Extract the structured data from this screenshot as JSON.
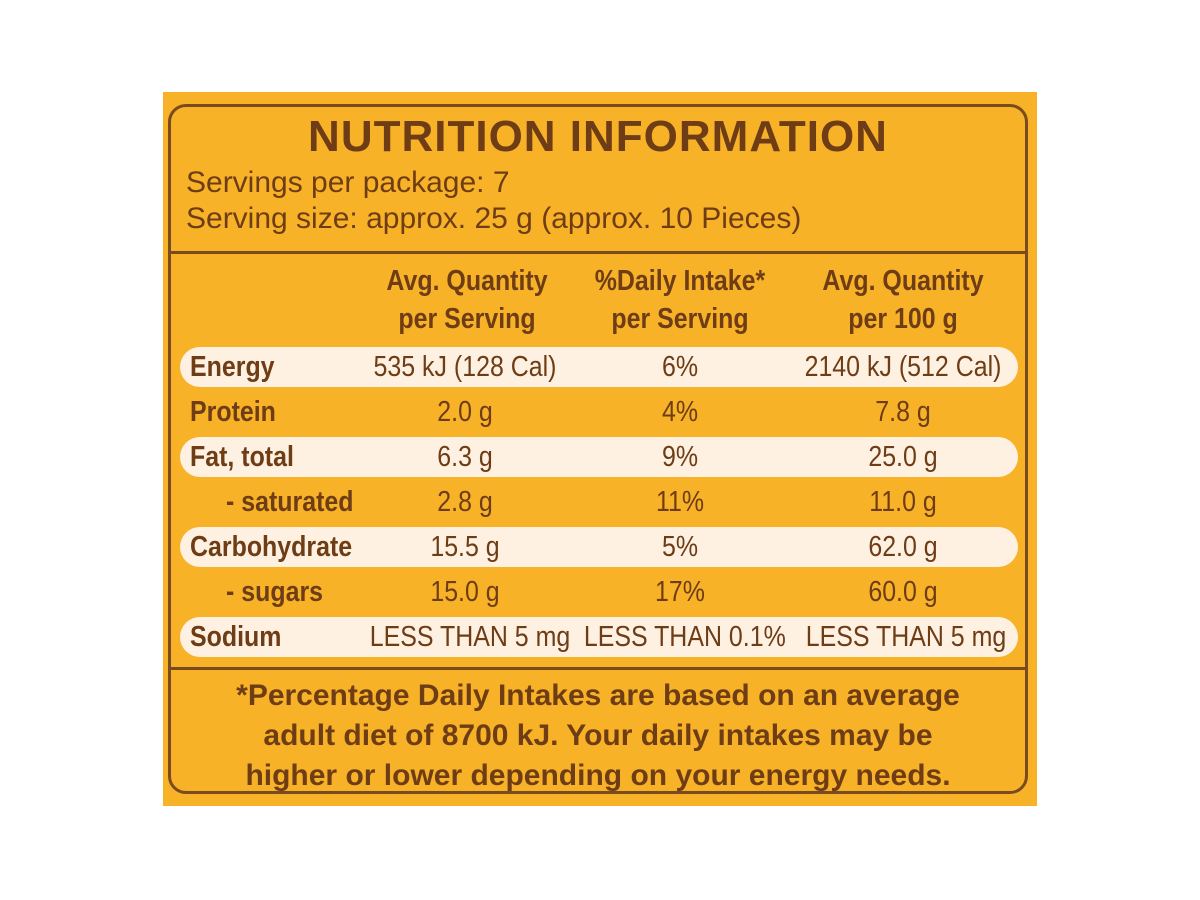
{
  "title": "NUTRITION INFORMATION",
  "servings_per_package": "Servings per package: 7",
  "serving_size": "Serving size: approx. 25 g (approx. 10 Pieces)",
  "columns": [
    {
      "line1": "Avg. Quantity",
      "line2": "per Serving"
    },
    {
      "line1": "%Daily Intake*",
      "line2": "per Serving"
    },
    {
      "line1": "Avg. Quantity",
      "line2": "per 100 g"
    }
  ],
  "rows": [
    {
      "name": "Energy",
      "per_serving": "535 kJ (128 Cal)",
      "daily_intake": "6%",
      "per_100g": "2140 kJ (512 Cal)"
    },
    {
      "name": "Protein",
      "per_serving": "2.0 g",
      "daily_intake": "4%",
      "per_100g": "7.8 g"
    },
    {
      "name": "Fat, total",
      "per_serving": "6.3 g",
      "daily_intake": "9%",
      "per_100g": "25.0 g"
    },
    {
      "name": "- saturated",
      "per_serving": "2.8 g",
      "daily_intake": "11%",
      "per_100g": "11.0 g"
    },
    {
      "name": "Carbohydrate",
      "per_serving": "15.5 g",
      "daily_intake": "5%",
      "per_100g": "62.0 g"
    },
    {
      "name": "- sugars",
      "per_serving": "15.0 g",
      "daily_intake": "17%",
      "per_100g": "60.0 g"
    },
    {
      "name": "Sodium",
      "per_serving": "LESS THAN 5 mg",
      "daily_intake": "LESS THAN 0.1%",
      "per_100g": "LESS THAN 5 mg"
    }
  ],
  "footnote": {
    "line1": "*Percentage Daily Intakes are based on an average",
    "line2": "adult diet of 8700 kJ. Your daily intakes may be",
    "line3": "higher or lower depending on your energy needs."
  },
  "colors": {
    "background": "#f7b227",
    "text_brown": "#6e3d16",
    "border_brown": "#7a4b1e",
    "row_highlight": "#fff1e2"
  }
}
